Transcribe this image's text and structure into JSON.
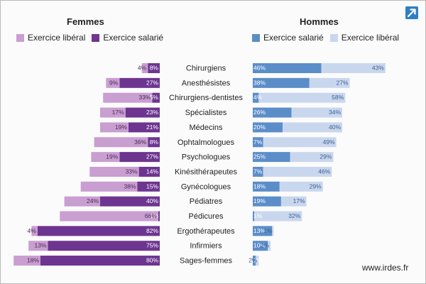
{
  "page": {
    "watermark": "www.irdes.fr",
    "expand_icon": "expand-arrow-icon"
  },
  "colors": {
    "women_liberal": "#c99ed1",
    "women_salaried": "#6d3590",
    "men_salaried": "#5b8dc9",
    "men_liberal": "#c9d7ee",
    "expand_button": "#2f7fc6"
  },
  "chart_data": {
    "type": "bar",
    "categories": [
      "Chirurgiens",
      "Anesthésistes",
      "Chirurgiens-dentistes",
      "Spécialistes",
      "Médecins",
      "Ophtalmologues",
      "Psychologues",
      "Kinésithérapeutes",
      "Gynécologues",
      "Pédiatres",
      "Pédicures",
      "Ergothérapeutes",
      "Infirmiers",
      "Sages-femmes"
    ],
    "unit": "%",
    "panels": [
      {
        "title": "Femmes",
        "side": "left",
        "legend": [
          "Exercice libéral",
          "Exercice salarié"
        ],
        "series": [
          {
            "name": "Exercice salarié",
            "color_key": "women_salaried",
            "values": [
              8,
              27,
              5,
              23,
              21,
              8,
              27,
              14,
              15,
              40,
              1,
              82,
              75,
              80
            ]
          },
          {
            "name": "Exercice libéral",
            "color_key": "women_liberal",
            "values": [
              4,
              9,
              33,
              17,
              19,
              36,
              19,
              33,
              38,
              24,
              66,
              4,
              13,
              18
            ]
          }
        ]
      },
      {
        "title": "Hommes",
        "side": "right",
        "legend": [
          "Exercice salarié",
          "Exercice libéral"
        ],
        "series": [
          {
            "name": "Exercice salarié",
            "color_key": "men_salaried",
            "values": [
              46,
              38,
              4,
              26,
              20,
              7,
              25,
              7,
              18,
              19,
              1,
              13,
              10,
              2
            ]
          },
          {
            "name": "Exercice libéral",
            "color_key": "men_liberal",
            "values": [
              43,
              27,
              58,
              34,
              40,
              49,
              29,
              46,
              29,
              17,
              32,
              1,
              2,
              2
            ]
          }
        ]
      }
    ],
    "grid": false,
    "legend_position": "top"
  }
}
